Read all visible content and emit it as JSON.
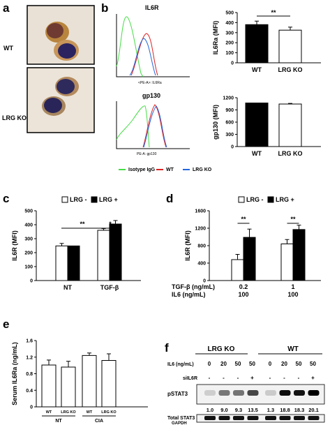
{
  "panels": {
    "a": {
      "label": "a",
      "rows": [
        "WT",
        "LRG KO"
      ]
    },
    "b": {
      "label": "b",
      "hist": [
        {
          "title": "IL6R",
          "xlabel": "<PE-A>: IL6Ra"
        },
        {
          "title": "gp130",
          "xlabel": "PE-A: gp130"
        }
      ],
      "legend": [
        {
          "name": "Isotype IgG",
          "color": "#44dd44"
        },
        {
          "name": "WT",
          "color": "#dd2222"
        },
        {
          "name": "LRG KO",
          "color": "#2266dd"
        }
      ]
    },
    "c": {
      "label": "c"
    },
    "d": {
      "label": "d",
      "rows": [
        {
          "label": "TGF-β (ng/mL)",
          "values": [
            "0.2",
            "1"
          ]
        },
        {
          "label": "IL6 (ng/mL)",
          "values": [
            "100",
            "100"
          ]
        }
      ]
    },
    "e": {
      "label": "e"
    },
    "f": {
      "label": "f",
      "groups": [
        "LRG KO",
        "WT"
      ],
      "il6_label": "IL6 (ng/mL)",
      "il6": [
        "0",
        "20",
        "50",
        "50",
        "0",
        "20",
        "50",
        "50"
      ],
      "si_label": "siIL6R",
      "si": [
        "-",
        "-",
        "-",
        "+",
        "-",
        "-",
        "-",
        "+"
      ],
      "quant": [
        "1.0",
        "9.0",
        "9.3",
        "13.5",
        "1.3",
        "18.8",
        "18.3",
        "20.1"
      ],
      "blots": [
        "pSTAT3",
        "Total STAT3",
        "GAPDH"
      ]
    }
  },
  "chart_data": [
    {
      "type": "bar",
      "panel": "b-top",
      "categories": [
        "WT",
        "LRG KO"
      ],
      "values": [
        380,
        325
      ],
      "errors": [
        35,
        30
      ],
      "ylabel": "IL6Ra (MFI)",
      "ylim": [
        0,
        500
      ],
      "yticks": [
        0,
        100,
        200,
        300,
        400,
        500
      ],
      "fills": [
        "#000000",
        "#ffffff"
      ],
      "annotations": [
        "**"
      ]
    },
    {
      "type": "bar",
      "panel": "b-bottom",
      "categories": [
        "WT",
        "LRG KO"
      ],
      "values": [
        1070,
        1045
      ],
      "errors": [
        0,
        15
      ],
      "ylabel": "gp130 (MFI)",
      "ylim": [
        0,
        1200
      ],
      "yticks": [
        0,
        300,
        600,
        900,
        1200
      ],
      "fills": [
        "#000000",
        "#ffffff"
      ],
      "annotations": []
    },
    {
      "type": "bar",
      "panel": "c",
      "categories": [
        "NT",
        "TGF-β"
      ],
      "series": [
        {
          "name": "LRG -",
          "values": [
            248,
            360
          ],
          "errors": [
            18,
            12
          ],
          "color": "#ffffff"
        },
        {
          "name": "LRG +",
          "values": [
            248,
            405
          ],
          "errors": [
            0,
            25
          ],
          "color": "#000000"
        }
      ],
      "ylabel": "IL6R (MFI)",
      "ylim": [
        0,
        500
      ],
      "yticks": [
        0,
        100,
        200,
        300,
        400,
        500
      ],
      "annotations": [
        "**",
        "*"
      ]
    },
    {
      "type": "bar",
      "panel": "d",
      "categories": [
        "0.2",
        "1"
      ],
      "series": [
        {
          "name": "LRG -",
          "values": [
            480,
            840
          ],
          "errors": [
            120,
            100
          ],
          "color": "#ffffff"
        },
        {
          "name": "LRG +",
          "values": [
            990,
            1170
          ],
          "errors": [
            190,
            100
          ],
          "color": "#000000"
        }
      ],
      "ylabel": "IL6R (MFI)",
      "ylim": [
        0,
        1600
      ],
      "yticks": [
        0,
        400,
        800,
        1200,
        1600
      ],
      "annotations": [
        "**",
        "**"
      ]
    },
    {
      "type": "bar",
      "panel": "e",
      "groups": [
        "NT",
        "CIA"
      ],
      "categories": [
        "WT",
        "LRG KO",
        "WT",
        "LRG KO"
      ],
      "values": [
        1.01,
        0.96,
        1.24,
        1.12
      ],
      "errors": [
        0.12,
        0.14,
        0.06,
        0.16
      ],
      "ylabel": "Serum IL6Ra (ng/mL)",
      "ylim": [
        0,
        1.6
      ],
      "yticks": [
        "0",
        "0.4",
        "0.8",
        "1.2",
        "1.6"
      ],
      "fills": [
        "#ffffff",
        "#ffffff",
        "#ffffff",
        "#ffffff"
      ]
    }
  ]
}
